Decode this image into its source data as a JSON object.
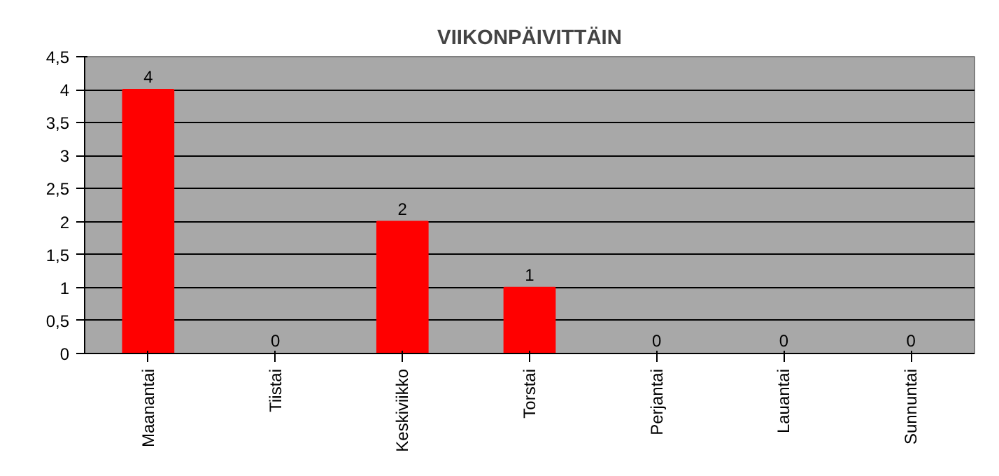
{
  "chart_data": {
    "type": "bar",
    "title": "VIIKONPÄIVITTÄIN",
    "categories": [
      "Maanantai",
      "Tiistai",
      "Keskiviikko",
      "Torstai",
      "Perjantai",
      "Lauantai",
      "Sunnuntai"
    ],
    "values": [
      4,
      0,
      2,
      1,
      0,
      0,
      0
    ],
    "color": "#ff0000",
    "ylim": [
      0,
      4.5
    ],
    "yticks": [
      0,
      {
        "value": 0.5,
        "label": "0,5"
      },
      1,
      {
        "value": 1.5,
        "label": "1,5"
      },
      2,
      {
        "value": 2.5,
        "label": "2,5"
      },
      3,
      {
        "value": 3.5,
        "label": "3,5"
      },
      4,
      {
        "value": 4.5,
        "label": "4,5"
      }
    ],
    "grid": "y",
    "data_labels": true
  }
}
